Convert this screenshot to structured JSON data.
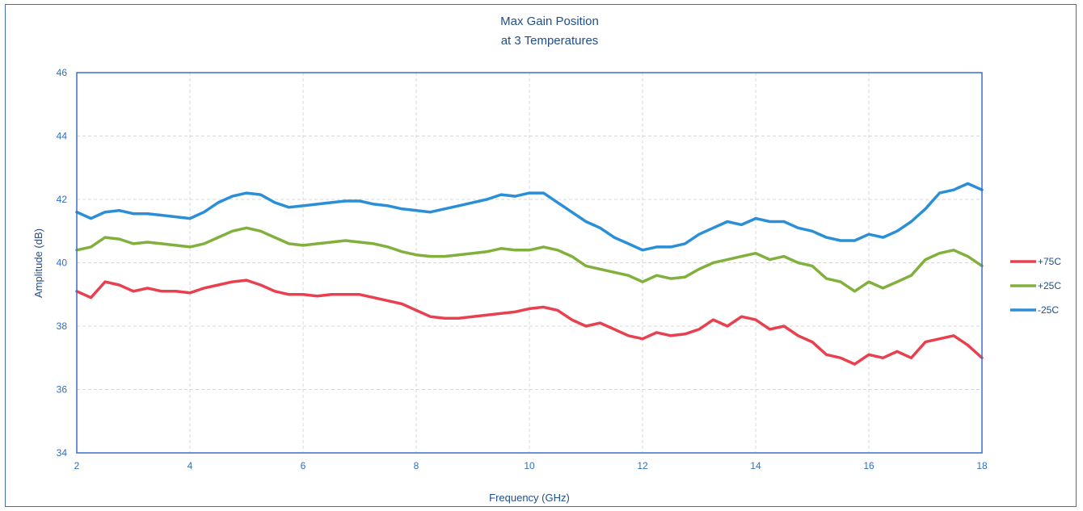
{
  "chart_data": {
    "type": "line",
    "title": "Max Gain Position",
    "subtitle": "at 3 Temperatures",
    "xlabel": "Frequency (GHz)",
    "ylabel": "Amplitude (dB)",
    "xlim": [
      2,
      18
    ],
    "ylim": [
      34,
      46
    ],
    "x_ticks": [
      "2",
      "4",
      "6",
      "8",
      "10",
      "12",
      "14",
      "16",
      "18"
    ],
    "y_ticks": [
      "34",
      "36",
      "38",
      "40",
      "42",
      "44",
      "46"
    ],
    "grid": true,
    "legend_position": "right",
    "x": [
      2.0,
      2.25,
      2.5,
      2.75,
      3.0,
      3.25,
      3.5,
      3.75,
      4.0,
      4.25,
      4.5,
      4.75,
      5.0,
      5.25,
      5.5,
      5.75,
      6.0,
      6.25,
      6.5,
      6.75,
      7.0,
      7.25,
      7.5,
      7.75,
      8.0,
      8.25,
      8.5,
      8.75,
      9.0,
      9.25,
      9.5,
      9.75,
      10.0,
      10.25,
      10.5,
      10.75,
      11.0,
      11.25,
      11.5,
      11.75,
      12.0,
      12.25,
      12.5,
      12.75,
      13.0,
      13.25,
      13.5,
      13.75,
      14.0,
      14.25,
      14.5,
      14.75,
      15.0,
      15.25,
      15.5,
      15.75,
      16.0,
      16.25,
      16.5,
      16.75,
      17.0,
      17.25,
      17.5,
      17.75,
      18.0
    ],
    "series": [
      {
        "name": "+75C",
        "color": "#e8404f",
        "values": [
          39.1,
          38.9,
          39.4,
          39.3,
          39.1,
          39.2,
          39.1,
          39.1,
          39.05,
          39.2,
          39.3,
          39.4,
          39.45,
          39.3,
          39.1,
          39.0,
          39.0,
          38.95,
          39.0,
          39.0,
          39.0,
          38.9,
          38.8,
          38.7,
          38.5,
          38.3,
          38.25,
          38.25,
          38.3,
          38.35,
          38.4,
          38.45,
          38.55,
          38.6,
          38.5,
          38.2,
          38.0,
          38.1,
          37.9,
          37.7,
          37.6,
          37.8,
          37.7,
          37.75,
          37.9,
          38.2,
          38.0,
          38.3,
          38.2,
          37.9,
          38.0,
          37.7,
          37.5,
          37.1,
          37.0,
          36.8,
          37.1,
          37.0,
          37.2,
          37.0,
          37.5,
          37.6,
          37.7,
          37.4,
          37.0
        ]
      },
      {
        "name": "+25C",
        "color": "#82b03d",
        "values": [
          40.4,
          40.5,
          40.8,
          40.75,
          40.6,
          40.65,
          40.6,
          40.55,
          40.5,
          40.6,
          40.8,
          41.0,
          41.1,
          41.0,
          40.8,
          40.6,
          40.55,
          40.6,
          40.65,
          40.7,
          40.65,
          40.6,
          40.5,
          40.35,
          40.25,
          40.2,
          40.2,
          40.25,
          40.3,
          40.35,
          40.45,
          40.4,
          40.4,
          40.5,
          40.4,
          40.2,
          39.9,
          39.8,
          39.7,
          39.6,
          39.4,
          39.6,
          39.5,
          39.55,
          39.8,
          40.0,
          40.1,
          40.2,
          40.3,
          40.1,
          40.2,
          40.0,
          39.9,
          39.5,
          39.4,
          39.1,
          39.4,
          39.2,
          39.4,
          39.6,
          40.1,
          40.3,
          40.4,
          40.2,
          39.9
        ]
      },
      {
        "name": "-25C",
        "color": "#2a8fd6",
        "values": [
          41.6,
          41.4,
          41.6,
          41.65,
          41.55,
          41.55,
          41.5,
          41.45,
          41.4,
          41.6,
          41.9,
          42.1,
          42.2,
          42.15,
          41.9,
          41.75,
          41.8,
          41.85,
          41.9,
          41.95,
          41.95,
          41.85,
          41.8,
          41.7,
          41.65,
          41.6,
          41.7,
          41.8,
          41.9,
          42.0,
          42.15,
          42.1,
          42.2,
          42.2,
          41.9,
          41.6,
          41.3,
          41.1,
          40.8,
          40.6,
          40.4,
          40.5,
          40.5,
          40.6,
          40.9,
          41.1,
          41.3,
          41.2,
          41.4,
          41.3,
          41.3,
          41.1,
          41.0,
          40.8,
          40.7,
          40.7,
          40.9,
          40.8,
          41.0,
          41.3,
          41.7,
          42.2,
          42.3,
          42.5,
          42.3
        ]
      }
    ]
  }
}
